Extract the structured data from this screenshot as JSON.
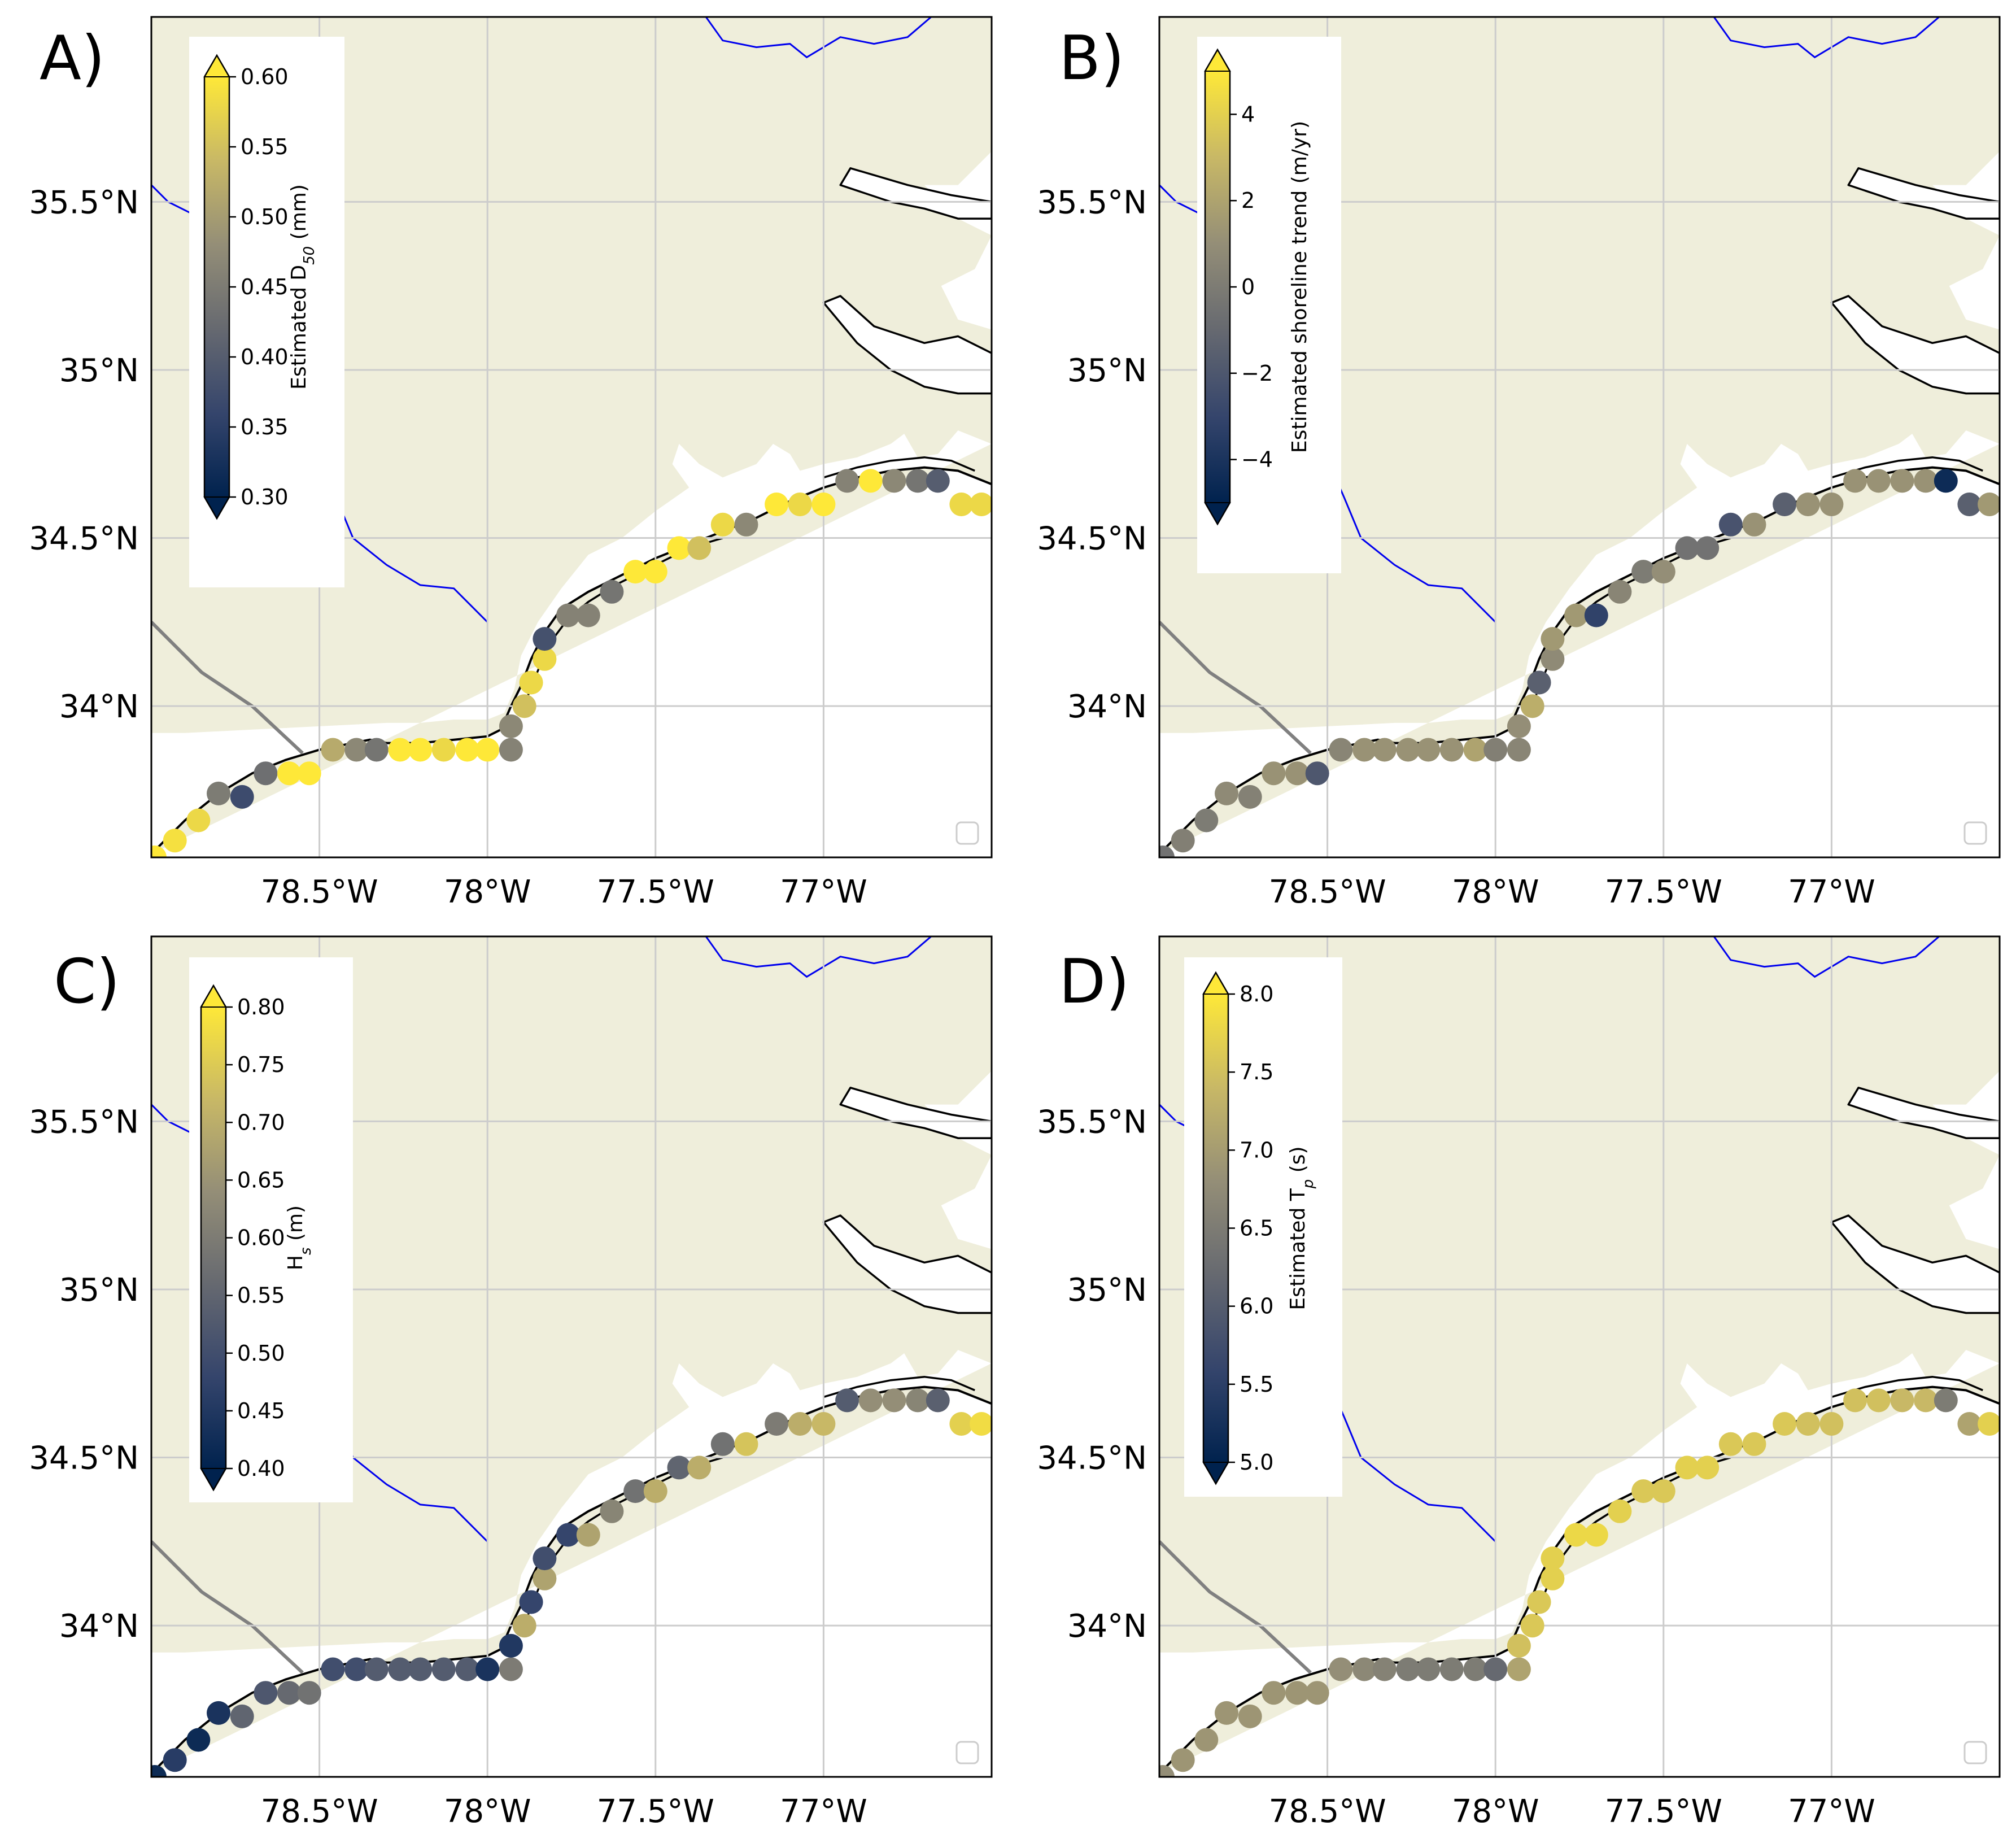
{
  "map": {
    "lon_range": [
      -79.0,
      -76.5
    ],
    "lat_range": [
      33.55,
      36.05
    ],
    "grid": true,
    "x_ticks": [
      {
        "value": -78.5,
        "label": "78.5°W"
      },
      {
        "value": -78.0,
        "label": "78°W"
      },
      {
        "value": -77.5,
        "label": "77.5°W"
      },
      {
        "value": -77.0,
        "label": "77°W"
      }
    ],
    "y_ticks": [
      {
        "value": 35.5,
        "label": "35.5°N"
      },
      {
        "value": 35.0,
        "label": "35°N"
      },
      {
        "value": 34.5,
        "label": "34.5°N"
      },
      {
        "value": 34.0,
        "label": "34°N"
      }
    ],
    "colors": {
      "land": "#efeedb",
      "sea": "#ffffff",
      "coastline": "#000000",
      "river": "#0000ee",
      "border": "#808080",
      "grid": "#cccccc"
    },
    "colormap": "cividis",
    "colormap_stops": [
      "#00224e",
      "#35456c",
      "#666970",
      "#948e77",
      "#c8b866",
      "#fee838"
    ],
    "site_lonlat": [
      [
        -78.99,
        33.55
      ],
      [
        -78.93,
        33.6
      ],
      [
        -78.86,
        33.66
      ],
      [
        -78.8,
        33.74
      ],
      [
        -78.73,
        33.73
      ],
      [
        -78.66,
        33.8
      ],
      [
        -78.59,
        33.8
      ],
      [
        -78.53,
        33.8
      ],
      [
        -78.46,
        33.87
      ],
      [
        -78.39,
        33.87
      ],
      [
        -78.33,
        33.87
      ],
      [
        -78.26,
        33.87
      ],
      [
        -78.2,
        33.87
      ],
      [
        -78.13,
        33.87
      ],
      [
        -78.06,
        33.87
      ],
      [
        -78.0,
        33.87
      ],
      [
        -77.93,
        33.87
      ],
      [
        -77.93,
        33.94
      ],
      [
        -77.89,
        34.0
      ],
      [
        -77.87,
        34.07
      ],
      [
        -77.83,
        34.14
      ],
      [
        -77.83,
        34.2
      ],
      [
        -77.76,
        34.27
      ],
      [
        -77.7,
        34.27
      ],
      [
        -77.63,
        34.34
      ],
      [
        -77.56,
        34.4
      ],
      [
        -77.5,
        34.4
      ],
      [
        -77.43,
        34.47
      ],
      [
        -77.37,
        34.47
      ],
      [
        -77.3,
        34.54
      ],
      [
        -77.23,
        34.54
      ],
      [
        -77.14,
        34.6
      ],
      [
        -77.07,
        34.6
      ],
      [
        -77.0,
        34.6
      ],
      [
        -76.93,
        34.67
      ],
      [
        -76.86,
        34.67
      ],
      [
        -76.79,
        34.67
      ],
      [
        -76.72,
        34.67
      ],
      [
        -76.66,
        34.67
      ],
      [
        -76.59,
        34.6
      ],
      [
        -76.53,
        34.6
      ]
    ]
  },
  "panels": [
    {
      "label": "A)",
      "colorbar_label": "Estimated D50 (mm)",
      "colorbar_label_main": "Estimated D",
      "colorbar_label_sub": "50",
      "colorbar_label_unit": " (mm)",
      "vmin": 0.3,
      "vmax": 0.6,
      "colorbar_ticks": [
        "0.60",
        "0.55",
        "0.50",
        "0.45",
        "0.40",
        "0.35",
        "0.30"
      ],
      "values": [
        0.6,
        0.59,
        0.58,
        0.45,
        0.37,
        0.43,
        0.6,
        0.6,
        0.52,
        0.47,
        0.44,
        0.6,
        0.6,
        0.58,
        0.6,
        0.6,
        0.46,
        0.47,
        0.55,
        0.58,
        0.58,
        0.38,
        0.46,
        0.46,
        0.44,
        0.6,
        0.6,
        0.6,
        0.55,
        0.58,
        0.47,
        0.6,
        0.58,
        0.6,
        0.46,
        0.6,
        0.47,
        0.44,
        0.4,
        0.58,
        0.58
      ]
    },
    {
      "label": "B)",
      "colorbar_label": "Estimated shoreline trend (m/yr)",
      "vmin": -5.0,
      "vmax": 5.0,
      "colorbar_ticks": [
        "4",
        "2",
        "0",
        "−2",
        "−4"
      ],
      "values": [
        -0.5,
        0.2,
        0.0,
        0.8,
        0.3,
        1.2,
        1.2,
        -2.0,
        0.5,
        1.2,
        1.2,
        1.2,
        1.2,
        1.2,
        2.0,
        0.2,
        0.5,
        1.0,
        2.5,
        -1.5,
        0.8,
        1.5,
        1.5,
        -3.2,
        0.5,
        0.0,
        1.0,
        -0.5,
        -0.5,
        -2.2,
        1.2,
        -1.5,
        1.2,
        1.2,
        1.2,
        1.2,
        1.2,
        1.2,
        -4.5,
        -1.5,
        1.5
      ]
    },
    {
      "label": "C)",
      "colorbar_label": "Hs (m)",
      "colorbar_label_main": "H",
      "colorbar_label_sub": "s",
      "colorbar_label_unit": " (m)",
      "vmin": 0.4,
      "vmax": 0.8,
      "colorbar_ticks": [
        "0.80",
        "0.75",
        "0.70",
        "0.65",
        "0.60",
        "0.55",
        "0.50",
        "0.45",
        "0.40"
      ],
      "values": [
        0.42,
        0.46,
        0.42,
        0.44,
        0.55,
        0.52,
        0.56,
        0.58,
        0.5,
        0.5,
        0.53,
        0.53,
        0.53,
        0.53,
        0.53,
        0.44,
        0.6,
        0.45,
        0.7,
        0.48,
        0.68,
        0.5,
        0.48,
        0.68,
        0.62,
        0.58,
        0.7,
        0.55,
        0.7,
        0.58,
        0.74,
        0.6,
        0.7,
        0.72,
        0.53,
        0.64,
        0.64,
        0.62,
        0.54,
        0.76,
        0.78
      ]
    },
    {
      "label": "D)",
      "colorbar_label": "Estimated Tp (s)",
      "colorbar_label_main": "Estimated T",
      "colorbar_label_sub": "p",
      "colorbar_label_unit": " (s)",
      "vmin": 5.0,
      "vmax": 8.0,
      "colorbar_ticks": [
        "8.0",
        "7.5",
        "7.0",
        "6.5",
        "6.0",
        "5.5",
        "5.0"
      ],
      "values": [
        6.8,
        6.9,
        6.9,
        6.9,
        6.9,
        6.9,
        6.9,
        6.9,
        6.8,
        6.7,
        6.6,
        6.5,
        6.5,
        6.5,
        6.5,
        6.2,
        7.1,
        7.5,
        7.6,
        7.6,
        7.7,
        7.7,
        7.8,
        7.8,
        7.7,
        7.6,
        7.6,
        7.7,
        7.7,
        7.6,
        7.6,
        7.6,
        7.5,
        7.5,
        7.5,
        7.5,
        7.4,
        7.4,
        6.5,
        7.1,
        7.7
      ]
    }
  ]
}
